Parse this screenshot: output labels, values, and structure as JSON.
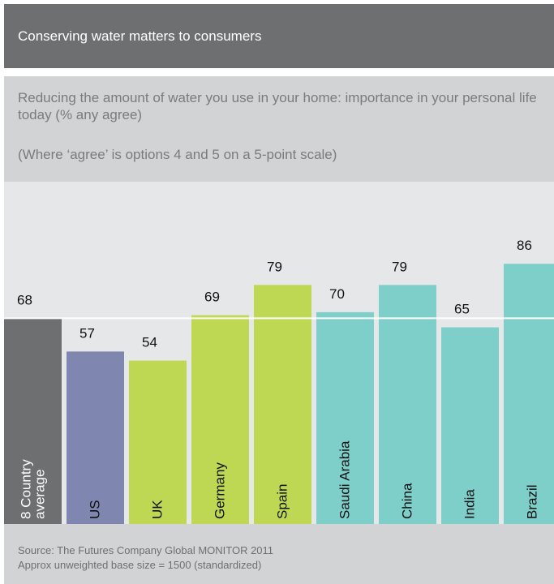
{
  "header": {
    "title": "Conserving water matters to consumers"
  },
  "subtitle": "Reducing the amount of water you use in your home: importance in your personal life today (% any agree)",
  "note": "(Where ‘agree’ is options 4 and 5 on a 5-point scale)",
  "footer": {
    "source": "Source: The Futures Company Global MONITOR 2011",
    "base": "Approx unweighted base size = 1500 (standardized)"
  },
  "colors": {
    "average": "#6e6f71",
    "us": "#7f86b0",
    "europe": "#bed854",
    "rest": "#7ecfca",
    "reference_line": "#ffffff"
  },
  "chart_data": {
    "type": "bar",
    "categories": [
      "8 Country average",
      "US",
      "UK",
      "Germany",
      "Spain",
      "Saudi Arabia",
      "China",
      "India",
      "Brazil"
    ],
    "values": [
      68,
      57,
      54,
      69,
      79,
      70,
      79,
      65,
      86
    ],
    "bar_colors": [
      "#6e6f71",
      "#7f86b0",
      "#bed854",
      "#bed854",
      "#bed854",
      "#7ecfca",
      "#7ecfca",
      "#7ecfca",
      "#7ecfca"
    ],
    "reference_line": 68,
    "grid": false
  }
}
